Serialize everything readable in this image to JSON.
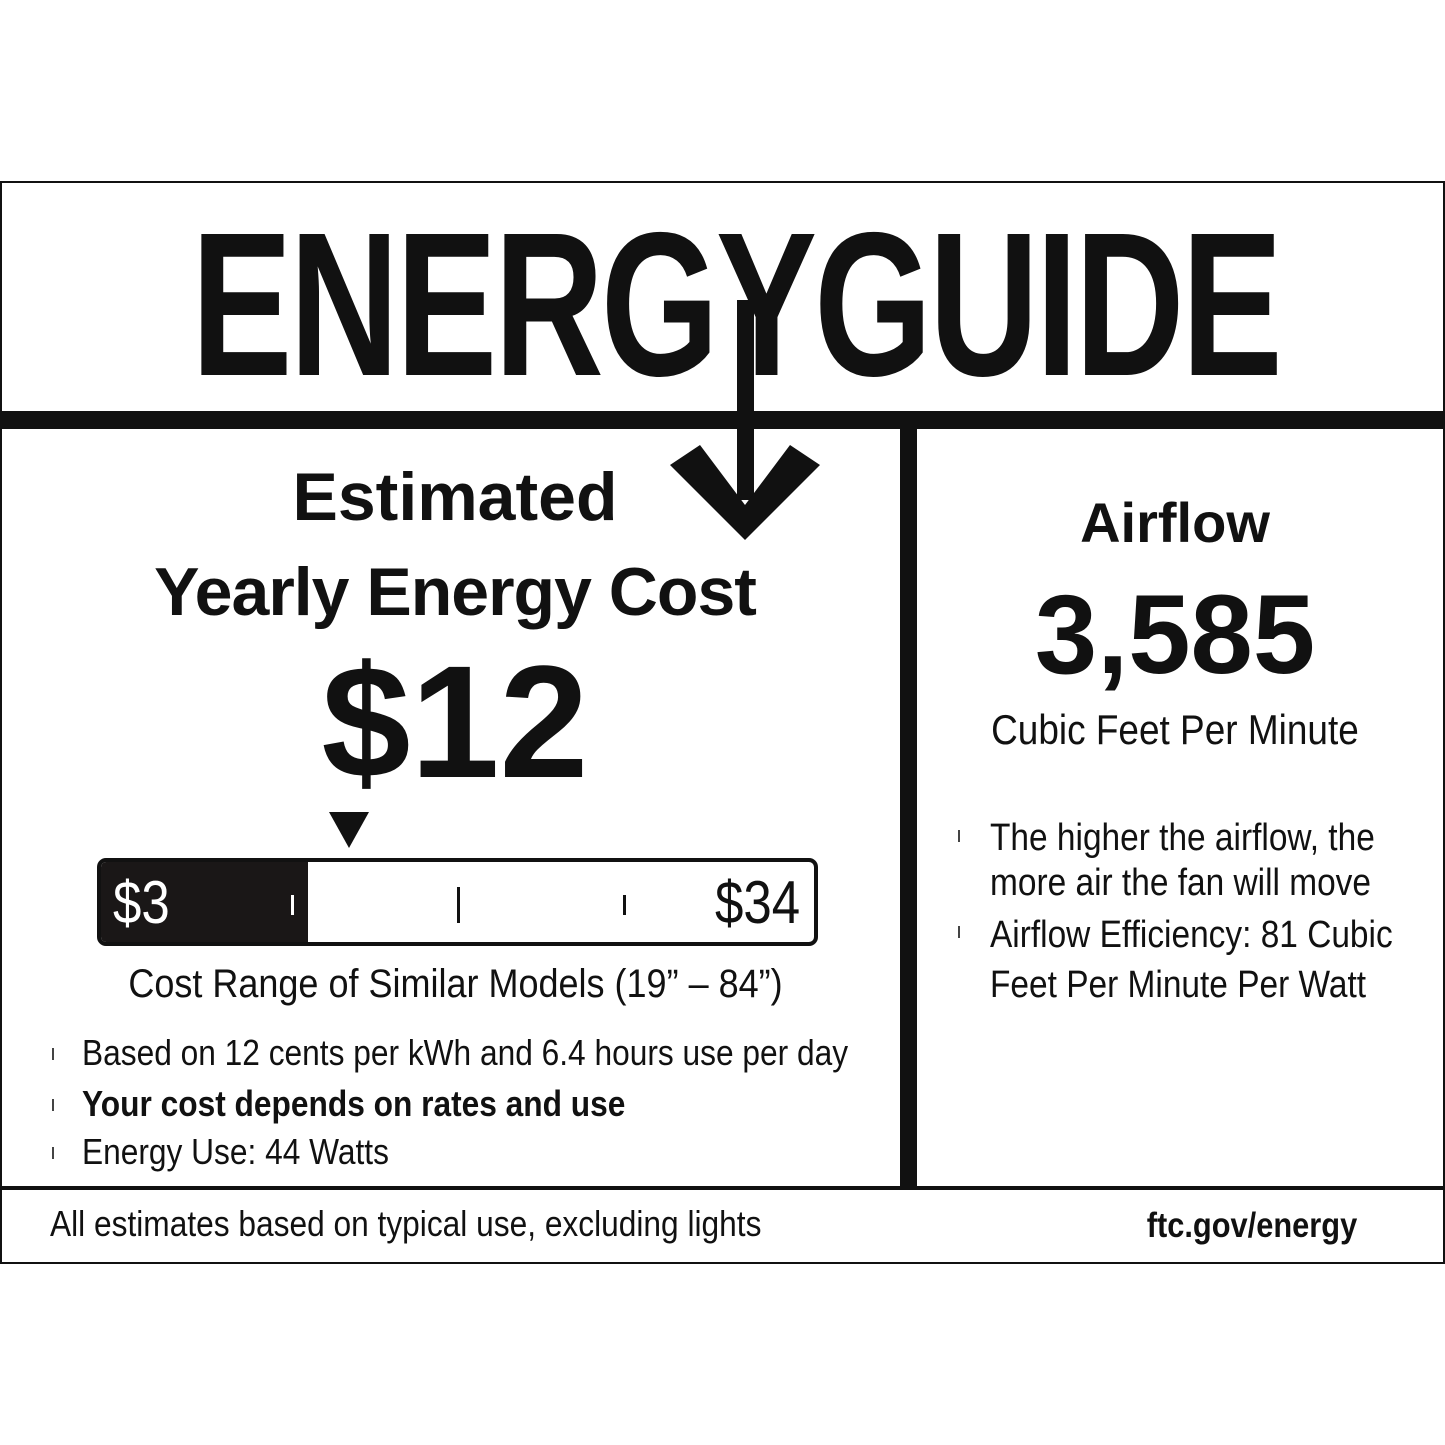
{
  "header": {
    "title": "ENERGYGUIDE"
  },
  "cost": {
    "heading_line1": "Estimated",
    "heading_line2": "Yearly Energy Cost",
    "value": "$12",
    "range_min": "$3",
    "range_max": "$34",
    "range_min_value": 3,
    "range_max_value": 34,
    "marker_value": 12,
    "range_caption": "Cost Range of Similar Models (19” – 84”)",
    "bullets": [
      "Based on 12 cents per kWh and 6.4 hours use per day",
      "Your cost depends on rates and use",
      "Energy Use: 44 Watts"
    ]
  },
  "airflow": {
    "heading": "Airflow",
    "value": "3,585",
    "unit": "Cubic Feet Per Minute",
    "bullets": [
      "The higher the airflow, the more air the fan will move",
      "Airflow Efficiency: 81 Cubic Feet Per Minute Per Watt"
    ],
    "bullet1_line1": "The higher the airflow, the",
    "bullet1_line2": "more air the fan will move",
    "bullet2_line1": "Airflow Efficiency: 81 Cubic",
    "bullet2_line2": "Feet Per Minute Per Watt"
  },
  "footer": {
    "note": "All estimates based on typical use, excluding lights",
    "link": "ftc.gov/energy"
  },
  "colors": {
    "ink": "#111111",
    "background": "#ffffff"
  }
}
